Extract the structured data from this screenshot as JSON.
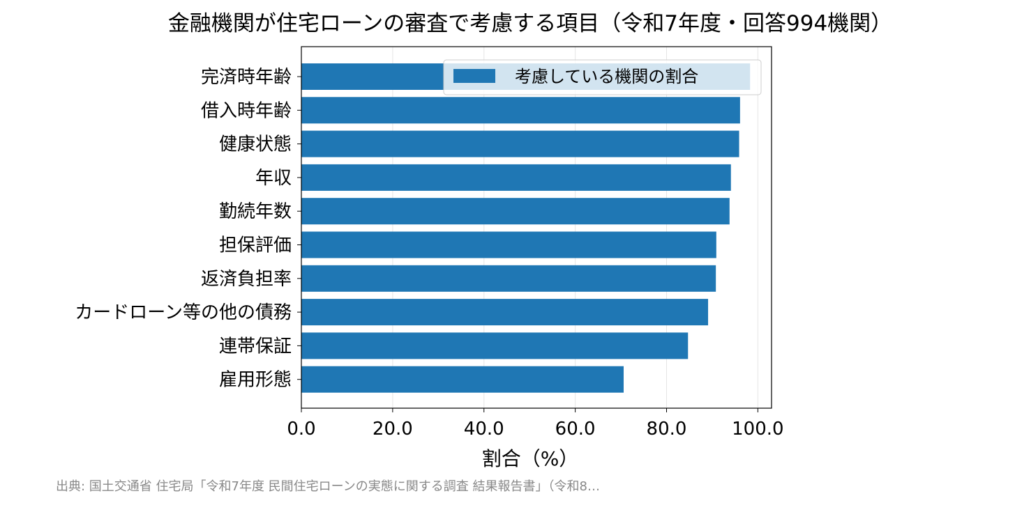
{
  "chart_data": {
    "type": "bar",
    "orientation": "horizontal",
    "title": "金融機関が住宅ローンの審査で考慮する項目（令和7年度・回答994機関）",
    "xlabel": "割合（%）",
    "ylabel": "",
    "xlim": [
      0,
      103
    ],
    "xticks": [
      0,
      20,
      40,
      60,
      80,
      100
    ],
    "tick_format": "0.0",
    "grid": "vertical",
    "legend_position": "top-right",
    "categories": [
      "完済時年齢",
      "借入時年齢",
      "健康状態",
      "年収",
      "勤続年数",
      "担保評価",
      "返済負担率",
      "カードローン等の他の債務",
      "連帯保証",
      "雇用形態"
    ],
    "series": [
      {
        "name": "考慮している機関の割合",
        "color": "#1f77b4",
        "values": [
          98.3,
          96.1,
          95.9,
          94.1,
          93.8,
          90.9,
          90.8,
          89.1,
          84.7,
          70.6
        ]
      }
    ]
  },
  "source_note": "出典: 国土交通省 住宅局「令和7年度 民間住宅ローンの実態に関する調査 結果報告書」（令和8…"
}
